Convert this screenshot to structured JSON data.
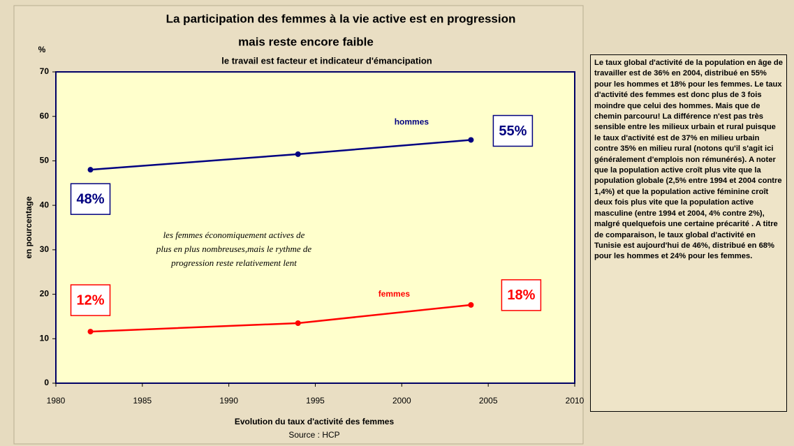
{
  "chart_data": {
    "type": "line",
    "title": "La participation des femmes à la vie active est en progression",
    "title_line2": "mais reste encore faible",
    "subtitle": "le travail est facteur et indicateur d'émancipation",
    "y_unit": "%",
    "y_label": "en pourcentage",
    "x_label": "Evolution du taux d'activité des femmes",
    "source": "Source : HCP",
    "x": [
      1982,
      1994,
      2004
    ],
    "series": [
      {
        "name": "hommes",
        "color": "#000080",
        "values": [
          48,
          51.5,
          54.7
        ],
        "value_labels": [
          "48%",
          null,
          "55%"
        ]
      },
      {
        "name": "femmes",
        "color": "#ff0000",
        "values": [
          11.6,
          13.5,
          17.6
        ],
        "value_labels": [
          "12%",
          null,
          "18%"
        ]
      }
    ],
    "xlim": [
      1980,
      2010
    ],
    "xticks": [
      1980,
      1985,
      1990,
      1995,
      2000,
      2005,
      2010
    ],
    "ylim": [
      0,
      70
    ],
    "yticks": [
      0,
      10,
      20,
      30,
      40,
      50,
      60,
      70
    ],
    "annotation": [
      "les femmes économiquement actives de",
      "plus en plus nombreuses,mais le rythme de",
      "progression reste relativement lent"
    ],
    "side_text": "Le taux global d'activité de la population en âge de travailler est de 36% en 2004, distribué en 55% pour les hommes et 18% pour les femmes. Le taux d'activité des femmes est donc plus de 3 fois moindre que celui des hommes. Mais que de chemin parcouru! La différence n'est pas très sensible entre les milieux urbain et rural puisque le taux d'activité est de 37% en milieu urbain contre 35% en milieu rural (notons qu'il s'agit ici généralement d'emplois non rémunérés). A noter que la population active croît plus vite que la population globale (2,5% entre 1994 et 2004 contre 1,4%) et que la population active féminine croît deux fois plus vite que la population active masculine (entre 1994 et 2004, 4% contre 2%), malgré quelquefois une certaine précarité . A titre de comparaison, le taux global d'activité en Tunisie est aujourd'hui de 46%, distribué en 68% pour les hommes et 24% pour les femmes."
  }
}
